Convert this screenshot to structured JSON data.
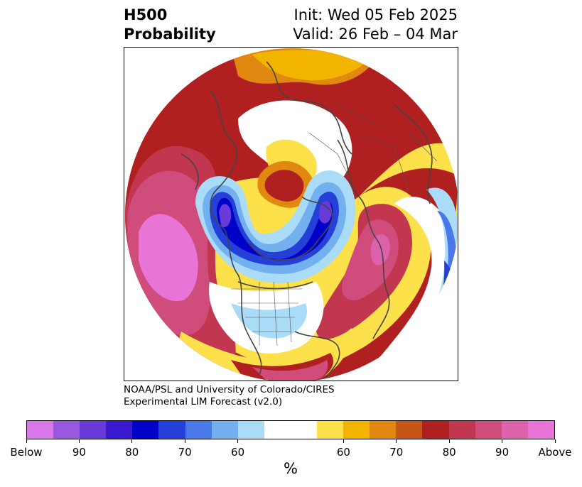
{
  "title": {
    "variable": "H500",
    "subtitle": "Probability",
    "init": "Init: Wed 05 Feb 2025",
    "valid": "Valid: 26 Feb – 04 Mar"
  },
  "credit": {
    "line1": "NOAA/PSL and University of Colorado/CIRES",
    "line2": "Experimental LIM Forecast (v2.0)"
  },
  "colorbar": {
    "units": "%",
    "colors": [
      "#d878e8",
      "#9a58e0",
      "#6a3ad8",
      "#3a18d0",
      "#0000c8",
      "#2540d8",
      "#4a78e8",
      "#72b0f0",
      "#aadcf8",
      "#ffffff",
      "#ffffff",
      "#fde14a",
      "#f3b400",
      "#e08810",
      "#c85518",
      "#b02020",
      "#c23650",
      "#cf4c7c",
      "#dc62ac",
      "#e874d8"
    ],
    "ticks": [
      "Below",
      "90",
      "80",
      "70",
      "60",
      "60",
      "70",
      "80",
      "90",
      "Above"
    ]
  }
}
